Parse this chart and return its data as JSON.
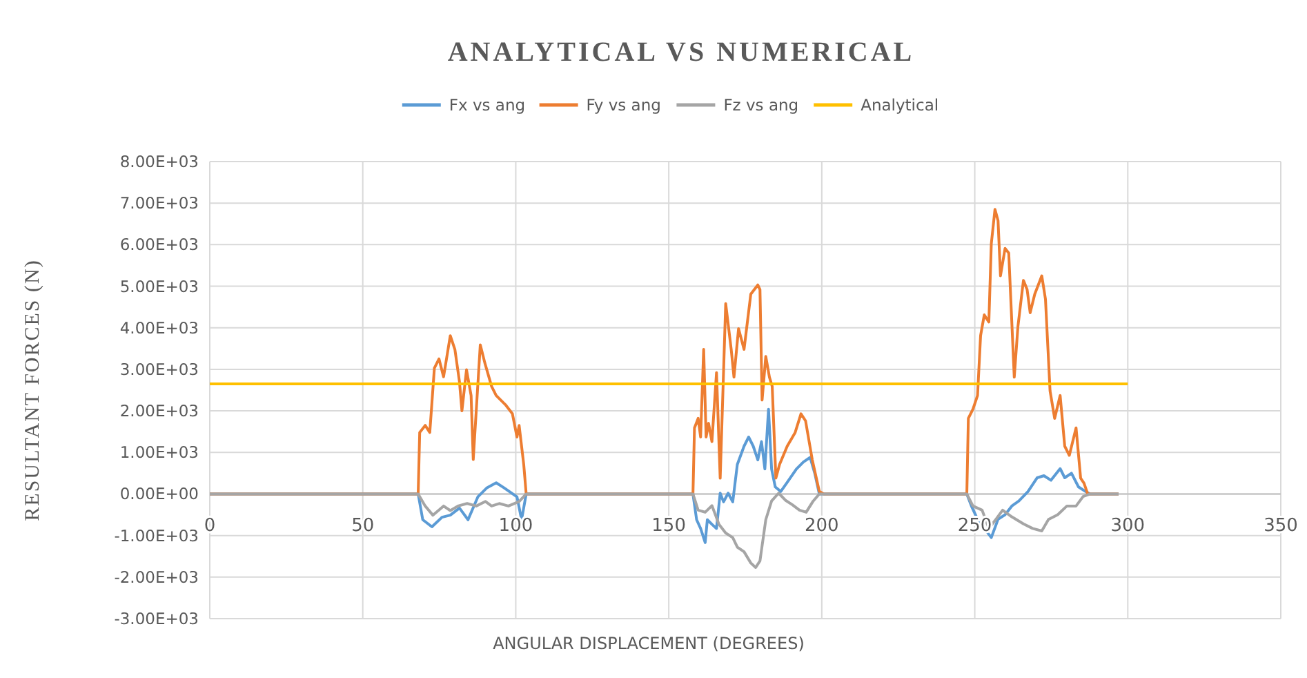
{
  "chart_data": {
    "type": "line",
    "title": "ANALYTICAL VS NUMERICAL",
    "xlabel": "ANGULAR DISPLACEMENT (DEGREES)",
    "ylabel": "RESULTANT FORCES (N)",
    "xlim": [
      0,
      350
    ],
    "xticks": [
      0,
      50,
      100,
      150,
      200,
      250,
      300,
      350
    ],
    "ylim": [
      -3000,
      8000
    ],
    "yticks": [
      {
        "value": -3000,
        "label": "-3.00E+03"
      },
      {
        "value": -2000,
        "label": "-2.00E+03"
      },
      {
        "value": -1000,
        "label": "-1.00E+03"
      },
      {
        "value": 0,
        "label": "0.00E+00"
      },
      {
        "value": 1000,
        "label": "1.00E+03"
      },
      {
        "value": 2000,
        "label": "2.00E+03"
      },
      {
        "value": 3000,
        "label": "3.00E+03"
      },
      {
        "value": 4000,
        "label": "4.00E+03"
      },
      {
        "value": 5000,
        "label": "5.00E+03"
      },
      {
        "value": 6000,
        "label": "6.00E+03"
      },
      {
        "value": 7000,
        "label": "7.00E+03"
      },
      {
        "value": 8000,
        "label": "8.00E+03"
      }
    ],
    "grid": true,
    "legend": "top",
    "marker": "none",
    "line_style": "solid",
    "series": [
      {
        "name": "Fx vs ang",
        "color": "#5b9bd5",
        "x": [
          0,
          68.1,
          69.6,
          72.6,
          75.9,
          78.6,
          81.6,
          84.4,
          87.6,
          90.6,
          93.6,
          96.1,
          100.4,
          101.9,
          103.4,
          157.9,
          159.1,
          160.4,
          161.9,
          162.6,
          164.1,
          165.6,
          166.8,
          167.9,
          169.4,
          170.9,
          172.4,
          174.6,
          176.1,
          177.6,
          179.1,
          180.3,
          181.4,
          182.6,
          183.6,
          184.8,
          186.6,
          188.7,
          191.7,
          194,
          196.2,
          197.7,
          199.2,
          247.4,
          248.9,
          250.9,
          253.1,
          255.4,
          257.6,
          259.9,
          262.1,
          264.4,
          267.4,
          270.4,
          272.6,
          274.9,
          277.9,
          279.4,
          281.6,
          283.9,
          286.2,
          287.7,
          297
        ],
        "values": [
          0,
          0,
          -620,
          -790,
          -560,
          -510,
          -340,
          -620,
          -70,
          150,
          270,
          150,
          -70,
          -620,
          0,
          0,
          -620,
          -830,
          -1170,
          -620,
          -730,
          -830,
          20,
          -190,
          20,
          -190,
          710,
          1150,
          1370,
          1150,
          820,
          1260,
          600,
          2040,
          600,
          170,
          60,
          280,
          600,
          770,
          880,
          500,
          0,
          0,
          -290,
          -610,
          -830,
          -1050,
          -610,
          -500,
          -290,
          -170,
          60,
          390,
          440,
          330,
          610,
          390,
          500,
          170,
          60,
          0,
          0
        ]
      },
      {
        "name": "Fy vs ang",
        "color": "#ed7d31",
        "x": [
          0,
          68.1,
          68.6,
          70.4,
          71.9,
          73.4,
          74.9,
          76.4,
          78.6,
          80.1,
          81.6,
          82.4,
          83.9,
          85.4,
          86.1,
          88.4,
          89.9,
          92.1,
          93.6,
          96.6,
          98.9,
          100.4,
          101.1,
          102.6,
          103.4,
          157.9,
          158.4,
          159.6,
          160.4,
          161.4,
          162.2,
          163,
          164.1,
          165.6,
          166.8,
          168.6,
          170.4,
          171.3,
          172.8,
          174.6,
          176.8,
          179.1,
          179.8,
          180.5,
          181.7,
          182.9,
          183.8,
          185,
          186.2,
          188.7,
          191.3,
          193.2,
          194.7,
          196.9,
          199.2,
          200.7,
          247.4,
          247.9,
          249.4,
          250.9,
          251.9,
          253.1,
          254.6,
          255.4,
          256.6,
          257.6,
          258.4,
          259.9,
          261.1,
          262.9,
          264.1,
          265.9,
          267.1,
          268.1,
          269.6,
          271.9,
          273.1,
          274.6,
          276.1,
          277.9,
          279.4,
          280.9,
          283.1,
          284.6,
          285.7,
          286.9,
          297
        ],
        "values": [
          0,
          0,
          1480,
          1650,
          1480,
          3030,
          3250,
          2820,
          3810,
          3480,
          2700,
          2000,
          2990,
          2370,
          830,
          3590,
          3150,
          2590,
          2370,
          2150,
          1930,
          1370,
          1650,
          710,
          0,
          0,
          1590,
          1820,
          1370,
          3480,
          1370,
          1700,
          1260,
          2920,
          380,
          4580,
          3480,
          2810,
          3980,
          3480,
          4810,
          5030,
          4920,
          2260,
          3310,
          2810,
          2590,
          380,
          710,
          1150,
          1480,
          1930,
          1760,
          820,
          60,
          0,
          0,
          1820,
          2040,
          2370,
          3810,
          4310,
          4140,
          6020,
          6850,
          6580,
          5250,
          5910,
          5800,
          2810,
          4030,
          5140,
          4920,
          4360,
          4810,
          5250,
          4690,
          2480,
          1820,
          2370,
          1150,
          930,
          1590,
          380,
          260,
          0,
          0
        ]
      },
      {
        "name": "Fz vs ang",
        "color": "#a5a5a5",
        "x": [
          0,
          68.1,
          70.4,
          72.9,
          76.4,
          78.6,
          81.1,
          84.1,
          87.1,
          90.1,
          92.1,
          94.6,
          97.6,
          101.1,
          103.4,
          157.9,
          159.6,
          161.9,
          164.1,
          166.4,
          168.6,
          170.9,
          172.4,
          174.6,
          176.8,
          178.4,
          179.8,
          181.7,
          183.6,
          185.9,
          188.1,
          190.4,
          192.7,
          194.9,
          197.2,
          199.2,
          247.4,
          249.4,
          252.4,
          254.6,
          256.9,
          259.1,
          262.1,
          265.9,
          268.9,
          271.9,
          274.1,
          277.1,
          280.1,
          283.1,
          285.4,
          287.7,
          297
        ],
        "values": [
          0,
          0,
          -290,
          -510,
          -290,
          -400,
          -290,
          -230,
          -290,
          -180,
          -290,
          -230,
          -290,
          -180,
          0,
          0,
          -390,
          -440,
          -280,
          -730,
          -940,
          -1050,
          -1280,
          -1390,
          -1660,
          -1770,
          -1610,
          -620,
          -170,
          20,
          -150,
          -260,
          -390,
          -440,
          -170,
          0,
          0,
          -290,
          -390,
          -830,
          -610,
          -390,
          -550,
          -720,
          -830,
          -890,
          -610,
          -500,
          -290,
          -290,
          -60,
          0,
          0
        ]
      },
      {
        "name": "Analytical",
        "color": "#ffc000",
        "x": [
          0,
          300
        ],
        "values": [
          2650,
          2650
        ]
      }
    ]
  }
}
